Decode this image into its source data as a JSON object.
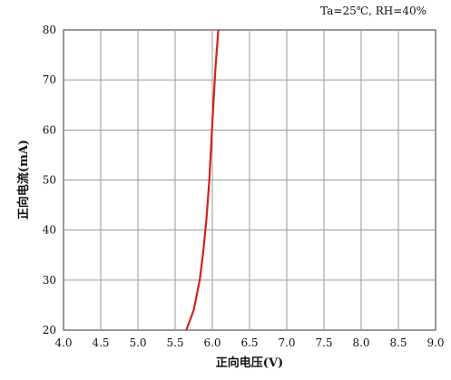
{
  "chart_data": {
    "type": "line",
    "title": "",
    "annotation": "Ta=25℃, RH=40%",
    "xlabel": "正向电压(V)",
    "ylabel": "正向电流(mA)",
    "xlim": [
      4.0,
      9.0
    ],
    "ylim": [
      20,
      80
    ],
    "x_ticks": [
      "4.0",
      "4.5",
      "5.0",
      "5.5",
      "6.0",
      "6.5",
      "7.0",
      "7.5",
      "8.0",
      "8.5",
      "9.0"
    ],
    "y_ticks": [
      "20",
      "30",
      "40",
      "50",
      "60",
      "70",
      "80"
    ],
    "grid": true,
    "series": [
      {
        "color": "#d42020",
        "points": [
          [
            5.65,
            20
          ],
          [
            5.75,
            24
          ],
          [
            5.83,
            30
          ],
          [
            5.88,
            36
          ],
          [
            5.92,
            42
          ],
          [
            5.96,
            50
          ],
          [
            5.98,
            56
          ],
          [
            6.01,
            64
          ],
          [
            6.04,
            72
          ],
          [
            6.08,
            80
          ]
        ]
      }
    ]
  }
}
